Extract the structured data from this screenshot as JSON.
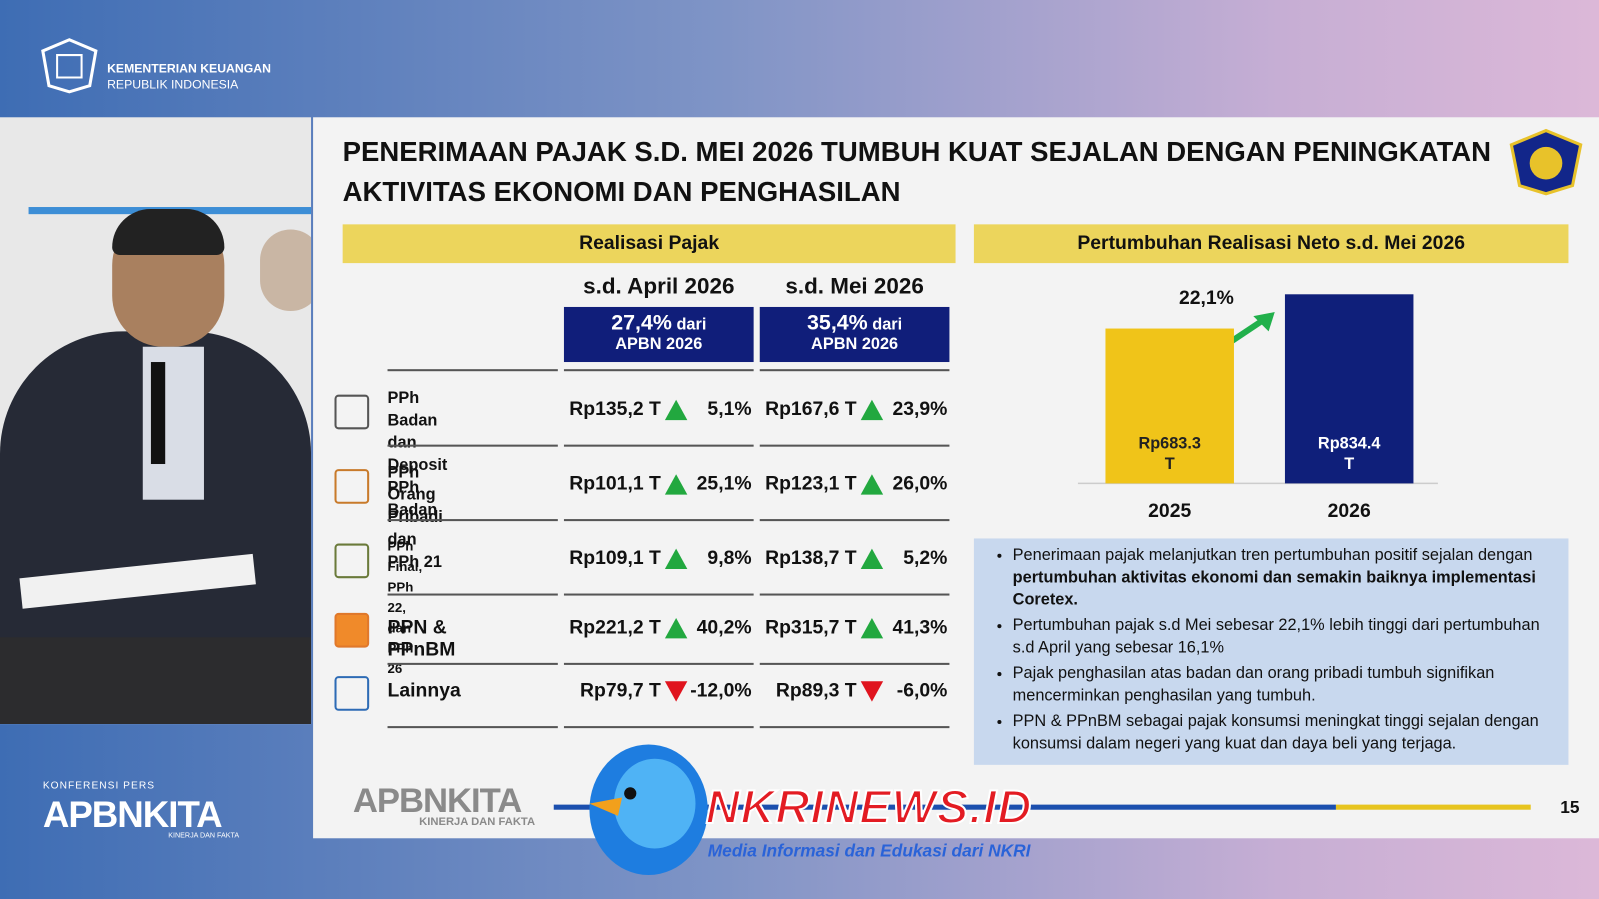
{
  "header": {
    "org_line1": "KEMENTERIAN KEUANGAN",
    "org_line2": "REPUBLIK INDONESIA"
  },
  "event": {
    "label": "KONFERENSI PERS",
    "brand": "APBNKITA",
    "tagline": "KINERJA DAN FAKTA"
  },
  "slide": {
    "title_line1": "PENERIMAAN PAJAK S.D. MEI 2026 TUMBUH KUAT SEJALAN DENGAN PENINGKATAN",
    "title_line2": "AKTIVITAS EKONOMI DAN PENGHASILAN",
    "table_title": "Realisasi Pajak",
    "columns": [
      {
        "period": "s.d. April 2026",
        "share": "27,4%",
        "share_suffix": "dari",
        "base": "APBN 2026"
      },
      {
        "period": "s.d. Mei 2026",
        "share": "35,4%",
        "share_suffix": "dari",
        "base": "APBN 2026"
      }
    ],
    "rows": [
      {
        "label": [
          "PPh Badan dan",
          "Deposit PPh Badan"
        ],
        "cells": [
          {
            "value": "Rp135,2 T",
            "growth": "5,1%"
          },
          {
            "value": "Rp167,6 T",
            "growth": "23,9%"
          }
        ]
      },
      {
        "label": [
          "PPh Orang Pribadi",
          "dan PPh 21"
        ],
        "cells": [
          {
            "value": "Rp101,1 T",
            "growth": "25,1%"
          },
          {
            "value": "Rp123,1 T",
            "growth": "26,0%"
          }
        ]
      },
      {
        "label": [
          "PPh Final,",
          "PPh 22, dan PPh 26"
        ],
        "cells": [
          {
            "value": "Rp109,1 T",
            "growth": "9,8%"
          },
          {
            "value": "Rp138,7 T",
            "growth": "5,2%"
          }
        ]
      },
      {
        "label": [
          "PPN & PPnBM"
        ],
        "cells": [
          {
            "value": "Rp221,2 T",
            "growth": "40,2%"
          },
          {
            "value": "Rp315,7 T",
            "growth": "41,3%"
          }
        ]
      },
      {
        "label": [
          "Lainnya"
        ],
        "cells": [
          {
            "value": "Rp79,7 T",
            "growth": "-12,0%"
          },
          {
            "value": "Rp89,3 T",
            "growth": "-6,0%"
          }
        ]
      }
    ],
    "bullets": [
      [
        "Penerimaan pajak melanjutkan tren pertumbuhan positif sejalan dengan ",
        "pertumbuhan aktivitas ekonomi dan semakin baiknya implementasi Coretex."
      ],
      [
        "Pertumbuhan pajak s.d Mei sebesar 22,1% lebih tinggi dari pertumbuhan s.d April yang sebesar 16,1%"
      ],
      [
        "Pajak penghasilan atas badan dan orang pribadi tumbuh signifikan mencerminkan penghasilan yang tumbuh."
      ],
      [
        "PPN & PPnBM sebagai pajak konsumsi meningkat tinggi sejalan dengan konsumsi dalam negeri yang kuat dan daya beli yang terjaga."
      ]
    ],
    "footer_brand": "APBNKITA",
    "footer_tagline": "KINERJA DAN FAKTA",
    "page": 15
  },
  "chart_data": {
    "type": "bar",
    "title": "Pertumbuhan Realisasi Neto s.d. Mei 2026",
    "categories": [
      "2025",
      "2026"
    ],
    "values": [
      683.3,
      834.4
    ],
    "value_labels": [
      "Rp683.3 T",
      "Rp834.4 T"
    ],
    "colors": [
      "#f0c419",
      "#0f1f7a"
    ],
    "ylim": [
      0,
      900
    ],
    "annotation": "22,1%"
  },
  "watermark": {
    "name": "NKRINEWS.ID",
    "tagline": "Media Informasi dan Edukasi dari NKRI"
  }
}
